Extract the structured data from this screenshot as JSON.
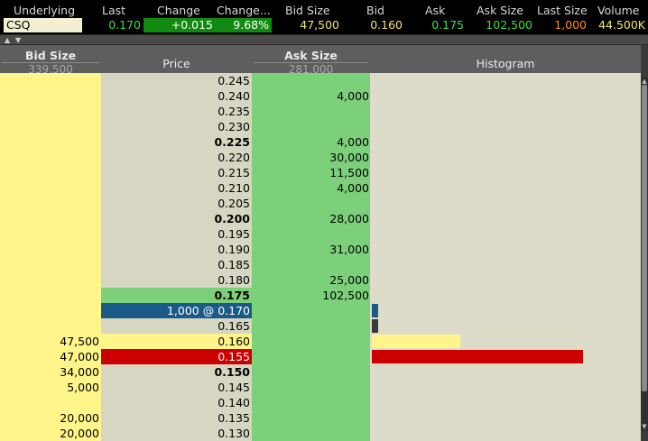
{
  "quote": {
    "headers": [
      "Underlying",
      "Last",
      "Change",
      "Change...",
      "Bid Size",
      "Bid",
      "Ask",
      "Ask Size",
      "Last Size",
      "Volume"
    ],
    "underlying": "CSQ",
    "last": "0.170",
    "change": "+0.015",
    "change_pct": "9.68%",
    "bid_size": "47,500",
    "bid": "0.160",
    "ask": "0.175",
    "ask_size": "102,500",
    "last_size": "1,000",
    "volume": "44.500K"
  },
  "columns": {
    "bid_size": "Bid Size",
    "bid_total": "339,500",
    "price": "Price",
    "ask_size": "Ask Size",
    "ask_total": "281,000",
    "histogram": "Histogram"
  },
  "colors": {
    "bid_bg": "#fff58a",
    "price_bg": "#d6d6c2",
    "ask_bg": "#7dd07a",
    "hist_bg": "#dcdcc8",
    "last_trade": "#1b5a86",
    "highlight_red": "#cc0000",
    "bid_bar": "#fff58a",
    "red_bar": "#cc0000"
  },
  "ladder": [
    {
      "bid": "",
      "price": "0.245",
      "ask": "",
      "bold": false,
      "style": "normal",
      "hist": 0,
      "hist_color": ""
    },
    {
      "bid": "",
      "price": "0.240",
      "ask": "4,000",
      "bold": false,
      "style": "normal",
      "hist": 0,
      "hist_color": ""
    },
    {
      "bid": "",
      "price": "0.235",
      "ask": "",
      "bold": false,
      "style": "normal",
      "hist": 0,
      "hist_color": ""
    },
    {
      "bid": "",
      "price": "0.230",
      "ask": "",
      "bold": false,
      "style": "normal",
      "hist": 0,
      "hist_color": ""
    },
    {
      "bid": "",
      "price": "0.225",
      "ask": "4,000",
      "bold": true,
      "style": "normal",
      "hist": 0,
      "hist_color": ""
    },
    {
      "bid": "",
      "price": "0.220",
      "ask": "30,000",
      "bold": false,
      "style": "normal",
      "hist": 0,
      "hist_color": ""
    },
    {
      "bid": "",
      "price": "0.215",
      "ask": "11,500",
      "bold": false,
      "style": "normal",
      "hist": 0,
      "hist_color": ""
    },
    {
      "bid": "",
      "price": "0.210",
      "ask": "4,000",
      "bold": false,
      "style": "normal",
      "hist": 0,
      "hist_color": ""
    },
    {
      "bid": "",
      "price": "0.205",
      "ask": "",
      "bold": false,
      "style": "normal",
      "hist": 0,
      "hist_color": ""
    },
    {
      "bid": "",
      "price": "0.200",
      "ask": "28,000",
      "bold": true,
      "style": "normal",
      "hist": 0,
      "hist_color": ""
    },
    {
      "bid": "",
      "price": "0.195",
      "ask": "",
      "bold": false,
      "style": "normal",
      "hist": 0,
      "hist_color": ""
    },
    {
      "bid": "",
      "price": "0.190",
      "ask": "31,000",
      "bold": false,
      "style": "normal",
      "hist": 0,
      "hist_color": ""
    },
    {
      "bid": "",
      "price": "0.185",
      "ask": "",
      "bold": false,
      "style": "normal",
      "hist": 0,
      "hist_color": ""
    },
    {
      "bid": "",
      "price": "0.180",
      "ask": "25,000",
      "bold": false,
      "style": "normal",
      "hist": 0,
      "hist_color": ""
    },
    {
      "bid": "",
      "price": "0.175",
      "ask": "102,500",
      "bold": true,
      "style": "best_ask",
      "hist": 0,
      "hist_color": ""
    },
    {
      "bid": "",
      "price": "1,000 @ 0.170",
      "ask": "",
      "bold": false,
      "style": "last_trade",
      "hist": 0.01,
      "hist_color": "#1b5a86"
    },
    {
      "bid": "",
      "price": "0.165",
      "ask": "",
      "bold": false,
      "style": "normal",
      "hist": 0.01,
      "hist_color": "#3a3a3a"
    },
    {
      "bid": "47,500",
      "price": "0.160",
      "ask": "",
      "bold": false,
      "style": "best_bid",
      "hist": 0.33,
      "hist_color": "#fff58a"
    },
    {
      "bid": "47,000",
      "price": "0.155",
      "ask": "",
      "bold": false,
      "style": "red",
      "hist": 0.79,
      "hist_color": "#cc0000"
    },
    {
      "bid": "34,000",
      "price": "0.150",
      "ask": "",
      "bold": true,
      "style": "normal",
      "hist": 0,
      "hist_color": ""
    },
    {
      "bid": "5,000",
      "price": "0.145",
      "ask": "",
      "bold": false,
      "style": "normal",
      "hist": 0,
      "hist_color": ""
    },
    {
      "bid": "",
      "price": "0.140",
      "ask": "",
      "bold": false,
      "style": "normal",
      "hist": 0,
      "hist_color": ""
    },
    {
      "bid": "20,000",
      "price": "0.135",
      "ask": "",
      "bold": false,
      "style": "normal",
      "hist": 0,
      "hist_color": ""
    },
    {
      "bid": "20,000",
      "price": "0.130",
      "ask": "",
      "bold": false,
      "style": "normal",
      "hist": 0,
      "hist_color": ""
    }
  ]
}
